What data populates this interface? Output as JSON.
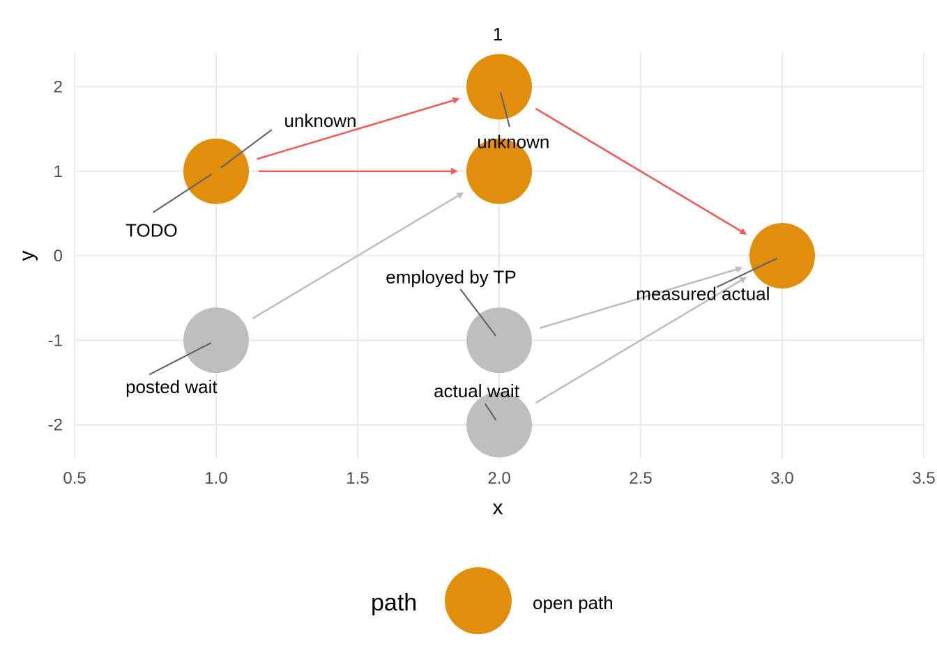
{
  "chart_data": {
    "type": "scatter",
    "title": "1",
    "xlabel": "x",
    "ylabel": "y",
    "xlim": [
      0.5,
      3.5
    ],
    "ylim": [
      -2.4,
      2.4
    ],
    "x_ticks": [
      "0.5",
      "1.0",
      "1.5",
      "2.0",
      "2.5",
      "3.0",
      "3.5"
    ],
    "y_ticks": [
      "-2",
      "-1",
      "0",
      "1",
      "2"
    ],
    "grid": true,
    "colors": {
      "open_node": "#E08E0B",
      "closed_node": "#BEBEBE",
      "open_edge": "#EF5B5B",
      "closed_edge": "#BEBEBE",
      "leader": "#666666"
    },
    "nodes": [
      {
        "id": "n1",
        "x": 1,
        "y": 1,
        "path": "open"
      },
      {
        "id": "n2",
        "x": 2,
        "y": 2,
        "path": "open"
      },
      {
        "id": "n3",
        "x": 2,
        "y": 1,
        "path": "open"
      },
      {
        "id": "n4",
        "x": 3,
        "y": 0,
        "path": "open"
      },
      {
        "id": "n5",
        "x": 1,
        "y": -1,
        "path": "closed"
      },
      {
        "id": "n6",
        "x": 2,
        "y": -1,
        "path": "closed"
      },
      {
        "id": "n7",
        "x": 2,
        "y": -2,
        "path": "closed"
      }
    ],
    "edges": [
      {
        "from": "n1",
        "to": "n2",
        "path": "open"
      },
      {
        "from": "n1",
        "to": "n3",
        "path": "open"
      },
      {
        "from": "n2",
        "to": "n4",
        "path": "open"
      },
      {
        "from": "n5",
        "to": "n3",
        "path": "closed"
      },
      {
        "from": "n6",
        "to": "n4",
        "path": "closed"
      },
      {
        "from": "n7",
        "to": "n4",
        "path": "closed"
      }
    ],
    "labels": [
      {
        "text": "unknown",
        "node": "n1",
        "x": 1.24,
        "y": 1.6,
        "anchor": "start"
      },
      {
        "text": "TODO",
        "node": "n1",
        "x": 0.68,
        "y": 0.3,
        "anchor": "start"
      },
      {
        "text": "unknown",
        "node": "n2",
        "x": 2.05,
        "y": 1.35,
        "anchor": "middle"
      },
      {
        "text": "employed by TP",
        "node": "n6",
        "x": 1.83,
        "y": -0.25,
        "anchor": "middle"
      },
      {
        "text": "measured actual",
        "node": "n4",
        "x": 2.72,
        "y": -0.45,
        "anchor": "middle"
      },
      {
        "text": "posted wait",
        "node": "n5",
        "x": 0.68,
        "y": -1.55,
        "anchor": "start"
      },
      {
        "text": "actual wait",
        "node": "n7",
        "x": 1.92,
        "y": -1.6,
        "anchor": "middle"
      }
    ],
    "legend": {
      "title": "path",
      "position": "bottom",
      "items": [
        {
          "label": "open path"
        }
      ]
    }
  }
}
